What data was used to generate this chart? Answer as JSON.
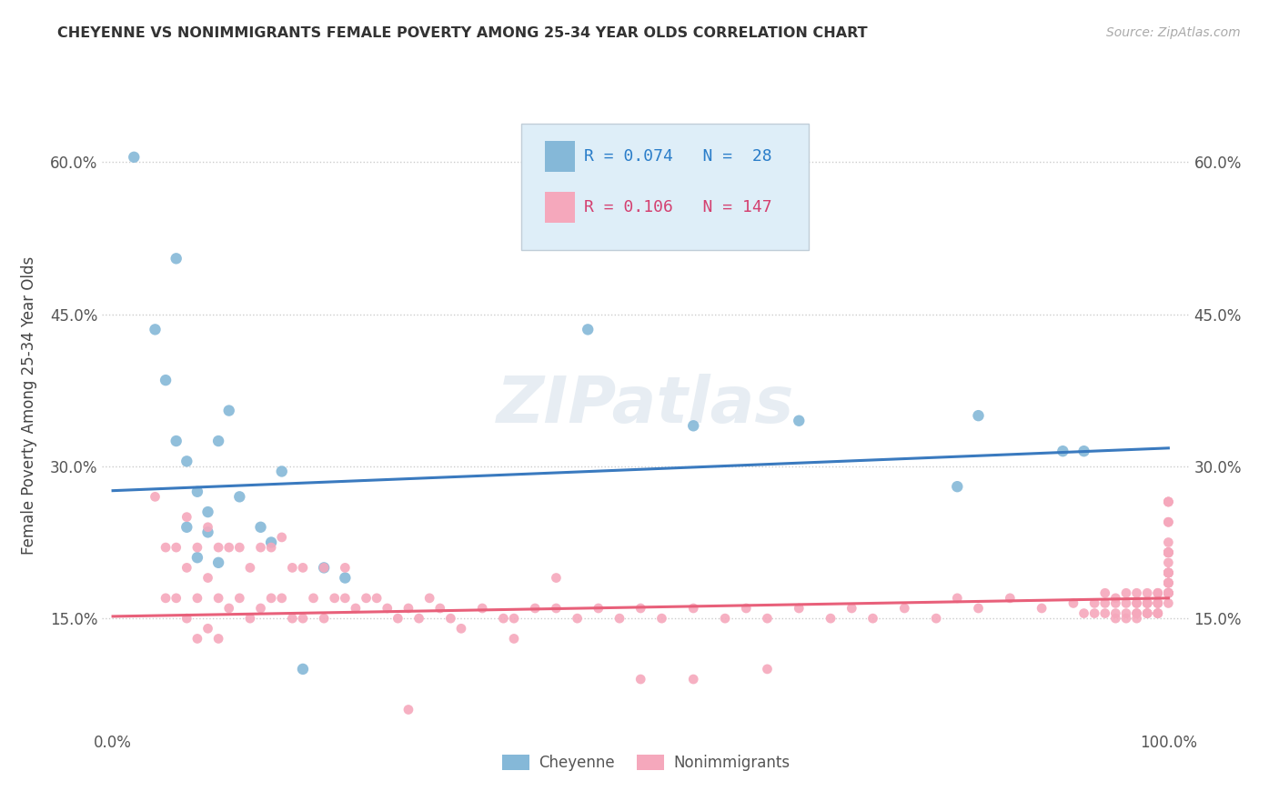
{
  "title": "CHEYENNE VS NONIMMIGRANTS FEMALE POVERTY AMONG 25-34 YEAR OLDS CORRELATION CHART",
  "source": "Source: ZipAtlas.com",
  "ylabel": "Female Poverty Among 25-34 Year Olds",
  "ytick_vals": [
    0.15,
    0.3,
    0.45,
    0.6
  ],
  "ytick_labels": [
    "15.0%",
    "30.0%",
    "45.0%",
    "60.0%"
  ],
  "xlim": [
    -0.01,
    1.02
  ],
  "ylim": [
    0.04,
    0.68
  ],
  "cheyenne_R": 0.074,
  "cheyenne_N": 28,
  "nonimmigrants_R": 0.106,
  "nonimmigrants_N": 147,
  "cheyenne_color": "#85b8d8",
  "nonimmigrants_color": "#f5a8bc",
  "cheyenne_line_color": "#3a7abf",
  "nonimmigrants_line_color": "#e8607a",
  "watermark": "ZIPatlas",
  "cheyenne_trend_x0": 0.0,
  "cheyenne_trend_y0": 0.276,
  "cheyenne_trend_x1": 1.0,
  "cheyenne_trend_y1": 0.318,
  "nonimmigrants_trend_x0": 0.0,
  "nonimmigrants_trend_y0": 0.152,
  "nonimmigrants_trend_x1": 1.0,
  "nonimmigrants_trend_y1": 0.17,
  "cheyenne_x": [
    0.02,
    0.04,
    0.05,
    0.06,
    0.07,
    0.07,
    0.08,
    0.08,
    0.09,
    0.09,
    0.1,
    0.1,
    0.11,
    0.12,
    0.14,
    0.15,
    0.16,
    0.18,
    0.2,
    0.22,
    0.45,
    0.55,
    0.65,
    0.8,
    0.82,
    0.9,
    0.92,
    0.06
  ],
  "cheyenne_y": [
    0.605,
    0.435,
    0.385,
    0.325,
    0.305,
    0.24,
    0.275,
    0.21,
    0.255,
    0.235,
    0.205,
    0.325,
    0.355,
    0.27,
    0.24,
    0.225,
    0.295,
    0.1,
    0.2,
    0.19,
    0.435,
    0.34,
    0.345,
    0.28,
    0.35,
    0.315,
    0.315,
    0.505
  ],
  "ni_x_low": [
    0.04,
    0.05,
    0.05,
    0.06,
    0.06,
    0.07,
    0.07,
    0.07,
    0.08,
    0.08,
    0.08,
    0.09,
    0.09,
    0.09,
    0.1,
    0.1,
    0.1,
    0.11,
    0.11,
    0.12,
    0.12,
    0.13,
    0.13,
    0.14,
    0.14,
    0.15,
    0.15,
    0.16,
    0.16,
    0.17,
    0.17,
    0.18,
    0.18,
    0.19,
    0.2,
    0.2,
    0.21,
    0.22,
    0.23,
    0.24,
    0.25,
    0.26,
    0.27,
    0.28,
    0.29,
    0.3,
    0.31,
    0.32,
    0.33,
    0.35,
    0.37,
    0.38,
    0.4,
    0.42,
    0.44,
    0.46,
    0.48,
    0.5,
    0.52,
    0.55,
    0.58,
    0.6,
    0.62,
    0.65,
    0.68,
    0.7,
    0.72,
    0.75,
    0.78,
    0.8,
    0.82,
    0.85,
    0.88,
    0.42,
    0.5,
    0.55,
    0.62,
    0.38,
    0.28,
    0.22
  ],
  "ni_y_low": [
    0.27,
    0.22,
    0.17,
    0.22,
    0.17,
    0.25,
    0.2,
    0.15,
    0.22,
    0.17,
    0.13,
    0.24,
    0.19,
    0.14,
    0.22,
    0.17,
    0.13,
    0.22,
    0.16,
    0.22,
    0.17,
    0.2,
    0.15,
    0.22,
    0.16,
    0.22,
    0.17,
    0.23,
    0.17,
    0.2,
    0.15,
    0.2,
    0.15,
    0.17,
    0.2,
    0.15,
    0.17,
    0.17,
    0.16,
    0.17,
    0.17,
    0.16,
    0.15,
    0.16,
    0.15,
    0.17,
    0.16,
    0.15,
    0.14,
    0.16,
    0.15,
    0.15,
    0.16,
    0.16,
    0.15,
    0.16,
    0.15,
    0.16,
    0.15,
    0.16,
    0.15,
    0.16,
    0.15,
    0.16,
    0.15,
    0.16,
    0.15,
    0.16,
    0.15,
    0.17,
    0.16,
    0.17,
    0.16,
    0.19,
    0.09,
    0.09,
    0.1,
    0.13,
    0.06,
    0.2
  ],
  "ni_x_high": [
    0.91,
    0.92,
    0.93,
    0.93,
    0.94,
    0.94,
    0.94,
    0.95,
    0.95,
    0.95,
    0.95,
    0.96,
    0.96,
    0.96,
    0.96,
    0.97,
    0.97,
    0.97,
    0.97,
    0.97,
    0.97,
    0.98,
    0.98,
    0.98,
    0.98,
    0.98,
    0.98,
    0.98,
    0.99,
    0.99,
    0.99,
    0.99,
    0.99,
    0.99,
    0.99,
    0.99,
    1.0,
    1.0,
    1.0,
    1.0,
    1.0,
    1.0,
    1.0,
    1.0,
    1.0,
    1.0,
    1.0,
    1.0,
    1.0,
    1.0,
    1.0,
    1.0,
    1.0,
    1.0,
    1.0,
    1.0,
    1.0,
    1.0,
    1.0,
    1.0,
    1.0,
    1.0,
    1.0,
    1.0,
    1.0,
    1.0,
    1.0
  ],
  "ni_y_high": [
    0.165,
    0.155,
    0.165,
    0.155,
    0.165,
    0.175,
    0.155,
    0.17,
    0.165,
    0.155,
    0.15,
    0.165,
    0.175,
    0.155,
    0.15,
    0.165,
    0.155,
    0.175,
    0.165,
    0.155,
    0.15,
    0.165,
    0.155,
    0.165,
    0.155,
    0.175,
    0.165,
    0.155,
    0.165,
    0.155,
    0.175,
    0.165,
    0.155,
    0.165,
    0.155,
    0.175,
    0.175,
    0.195,
    0.175,
    0.215,
    0.185,
    0.165,
    0.215,
    0.195,
    0.225,
    0.175,
    0.195,
    0.215,
    0.185,
    0.215,
    0.175,
    0.195,
    0.205,
    0.245,
    0.175,
    0.265,
    0.215,
    0.185,
    0.265,
    0.175,
    0.215,
    0.245,
    0.195,
    0.265,
    0.195,
    0.215,
    0.185
  ]
}
